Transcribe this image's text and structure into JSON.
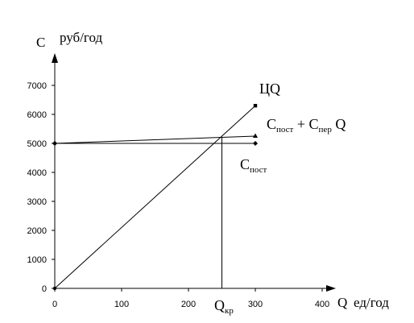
{
  "chart_data": {
    "type": "line",
    "x_axis": {
      "symbol": "Q",
      "unit": "ед/год",
      "range": [
        0,
        400
      ],
      "ticks": [
        0,
        100,
        200,
        300,
        400
      ]
    },
    "y_axis": {
      "symbol": "C",
      "unit": "руб/год",
      "range": [
        0,
        7000
      ],
      "ticks": [
        0,
        1000,
        2000,
        3000,
        4000,
        5000,
        6000,
        7000
      ]
    },
    "series": [
      {
        "name": "ЦQ",
        "points": [
          [
            0,
            0
          ],
          [
            300,
            6300
          ]
        ],
        "marker_start": "circle",
        "marker_end": "square"
      },
      {
        "name": "C_пост + C_пер Q",
        "name_main": "C",
        "name_sub1": "пост",
        "name_plus": " + C",
        "name_sub2": "пер",
        "name_tail": " Q",
        "points": [
          [
            0,
            5000
          ],
          [
            300,
            5250
          ]
        ],
        "marker_start": "diamond",
        "marker_end": "triangle"
      },
      {
        "name": "C_пост",
        "name_main": "C",
        "name_sub1": "пост",
        "points": [
          [
            0,
            5000
          ],
          [
            300,
            5000
          ]
        ],
        "marker_start": "diamond",
        "marker_end": "diamond"
      }
    ],
    "break_even": {
      "x": 250,
      "y": 5200,
      "label_main": "Q",
      "label_sub": "кр"
    },
    "grid": false,
    "legend": "inline"
  }
}
